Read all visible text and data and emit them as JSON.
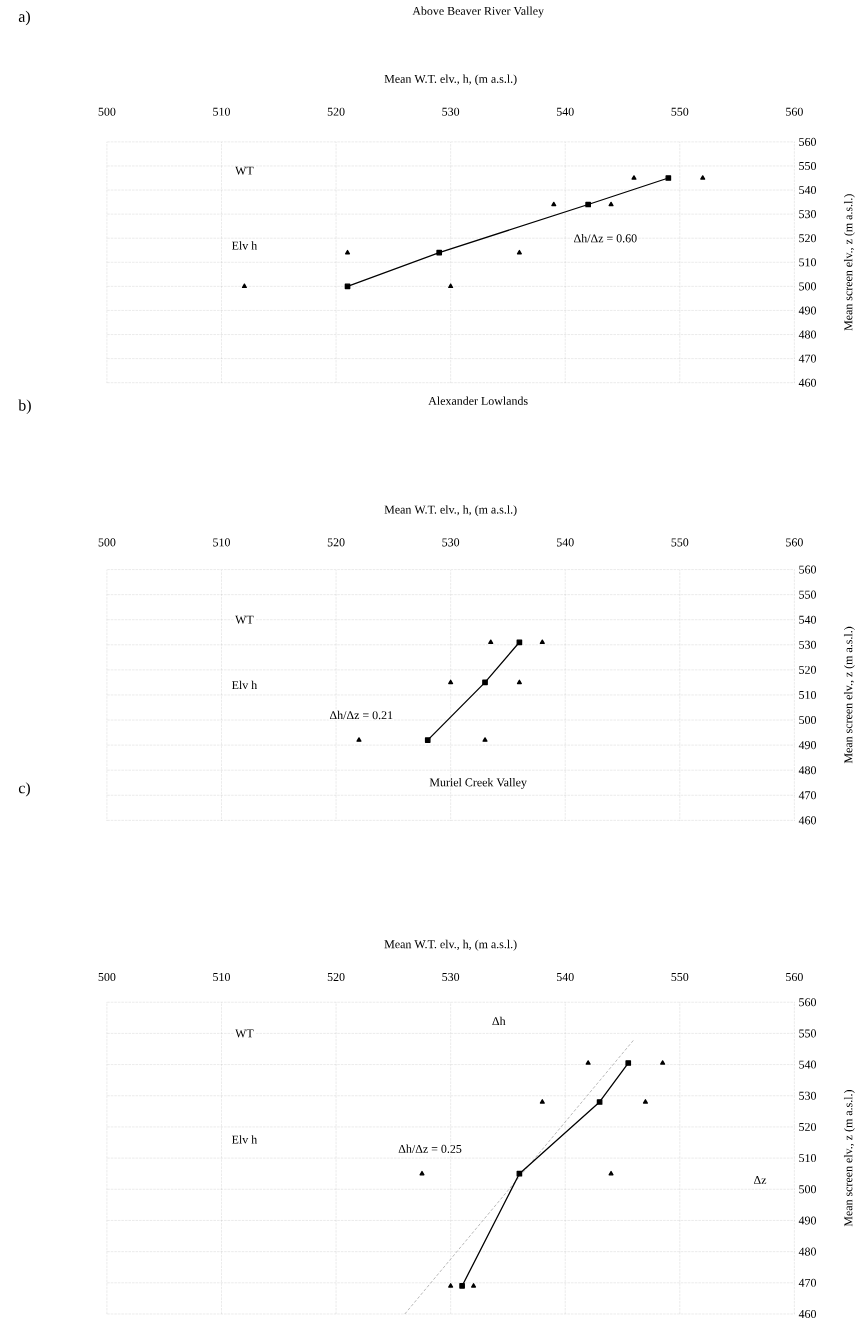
{
  "chart_data": [
    {
      "type": "line",
      "title": "Above Beaver River Valley",
      "xlabel": "Mean W.T. elv., h, (m a.s.l.)",
      "ylabel": "Mean screen elv., z (m a.s.l.)",
      "xlim": [
        500,
        560
      ],
      "ylim": [
        460,
        560
      ],
      "xticks": [
        500,
        510,
        520,
        530,
        540,
        550,
        560
      ],
      "yticks": [
        460,
        470,
        480,
        490,
        500,
        510,
        520,
        530,
        540,
        550,
        560
      ],
      "grid": true,
      "marker": "square",
      "series": [
        {
          "type": "scatter",
          "marker": "triangle",
          "color": "#000000",
          "x": [
            512,
            530,
            521,
            536,
            539,
            544,
            546,
            552
          ],
          "values": [
            500,
            500,
            514,
            514,
            534,
            534,
            545,
            545
          ]
        },
        {
          "color": "#000000",
          "x": [
            521,
            529,
            542,
            549
          ],
          "values": [
            500,
            514,
            534,
            545
          ]
        }
      ],
      "annotations": [
        "a)",
        "WT",
        "Elv h",
        "Δh/Δz = 0.60"
      ]
    },
    {
      "type": "line",
      "title": "Alexander Lowlands",
      "xlabel": "Mean W.T. elv., h, (m a.s.l.)",
      "ylabel": "Mean screen elv., z (m a.s.l.)",
      "xlim": [
        500,
        560
      ],
      "ylim": [
        460,
        560
      ],
      "xticks": [
        500,
        510,
        520,
        530,
        540,
        550,
        560
      ],
      "yticks": [
        460,
        470,
        480,
        490,
        500,
        510,
        520,
        530,
        540,
        550,
        560
      ],
      "grid": true,
      "marker": "square",
      "series": [
        {
          "type": "scatter",
          "marker": "triangle",
          "color": "#000000",
          "x": [
            522,
            533,
            530,
            536,
            533.5,
            538
          ],
          "values": [
            492,
            492,
            515,
            515,
            531,
            531
          ]
        },
        {
          "color": "#000000",
          "x": [
            528,
            533,
            536
          ],
          "values": [
            492,
            515,
            531
          ]
        }
      ],
      "annotations": [
        "b)",
        "WT",
        "Elv h",
        "Δh/Δz = 0.21"
      ]
    },
    {
      "type": "line",
      "title": "Muriel Creek Valley",
      "xlabel": "Mean W.T. elv., h, (m a.s.l.)",
      "ylabel": "Mean screen elv., z (m a.s.l.)",
      "xlim": [
        500,
        560
      ],
      "ylim": [
        460,
        560
      ],
      "xticks": [
        500,
        510,
        520,
        530,
        540,
        550,
        560
      ],
      "yticks": [
        460,
        470,
        480,
        490,
        500,
        510,
        520,
        530,
        540,
        550,
        560
      ],
      "grid": true,
      "marker": "square",
      "series": [
        {
          "type": "line",
          "color": "#999999",
          "line_style": "dashed",
          "marker": "none",
          "x": [
            526,
            546
          ],
          "values": [
            460,
            548
          ]
        },
        {
          "type": "scatter",
          "marker": "triangle",
          "color": "#000000",
          "x": [
            530,
            532,
            527.5,
            544,
            538,
            547,
            542,
            548.5
          ],
          "values": [
            469,
            469,
            505,
            505,
            528,
            528,
            540.5,
            540.5
          ]
        },
        {
          "color": "#000000",
          "x": [
            531,
            536,
            543,
            545.5
          ],
          "values": [
            469,
            505,
            528,
            540.5
          ]
        }
      ],
      "annotations": [
        "c)",
        "WT",
        "Elv h",
        "Δh/Δz = 0.25",
        "Δh",
        "Δz"
      ]
    }
  ]
}
